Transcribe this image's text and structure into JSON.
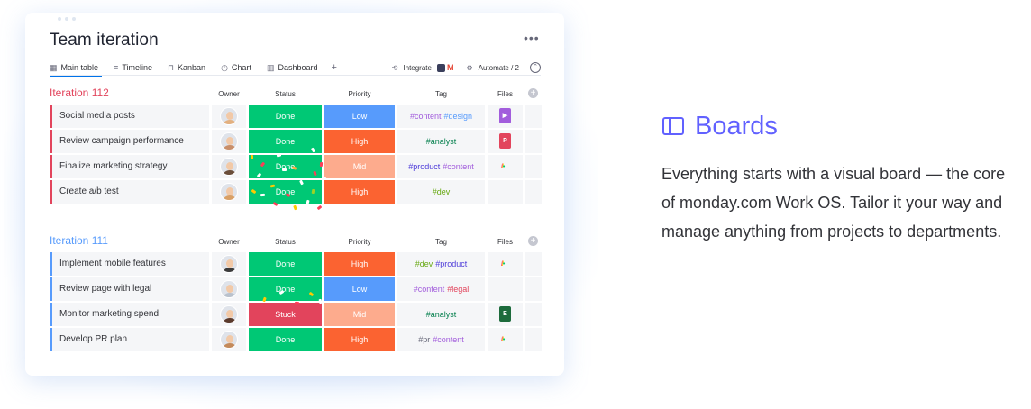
{
  "board": {
    "title": "Team iteration",
    "more_label": "•••",
    "views": [
      {
        "label": "Main table",
        "icon": "table-icon"
      },
      {
        "label": "Timeline",
        "icon": "timeline-icon"
      },
      {
        "label": "Kanban",
        "icon": "kanban-icon"
      },
      {
        "label": "Chart",
        "icon": "chart-icon"
      },
      {
        "label": "Dashboard",
        "icon": "dashboard-icon"
      }
    ],
    "add_view": "+",
    "integrate_label": "Integrate",
    "automate_label": "Automate / 2",
    "columns": {
      "owner": "Owner",
      "status": "Status",
      "priority": "Priority",
      "tag": "Tag",
      "files": "Files"
    },
    "groups": [
      {
        "title": "Iteration 112",
        "color": "#e2445c",
        "rows": [
          {
            "name": "Social media posts",
            "status": "Done",
            "priority": "Low",
            "tags": [
              "#content",
              "#design"
            ],
            "file": "video"
          },
          {
            "name": "Review campaign performance",
            "status": "Done",
            "priority": "High",
            "tags": [
              "#analyst"
            ],
            "file": "ppt"
          },
          {
            "name": "Finalize marketing strategy",
            "status": "Done",
            "priority": "Mid",
            "tags": [
              "#product",
              "#content"
            ],
            "file": "monday"
          },
          {
            "name": "Create a/b test",
            "status": "Done",
            "priority": "High",
            "tags": [
              "#dev"
            ],
            "file": "none"
          }
        ]
      },
      {
        "title": "Iteration 111",
        "color": "#579bfc",
        "rows": [
          {
            "name": "Implement mobile features",
            "status": "Done",
            "priority": "High",
            "tags": [
              "#dev",
              "#product"
            ],
            "file": "monday"
          },
          {
            "name": "Review page with legal",
            "status": "Done",
            "priority": "Low",
            "tags": [
              "#content",
              "#legal"
            ],
            "file": "none"
          },
          {
            "name": "Monitor marketing spend",
            "status": "Stuck",
            "priority": "Mid",
            "tags": [
              "#analyst"
            ],
            "file": "excel"
          },
          {
            "name": "Develop PR plan",
            "status": "Done",
            "priority": "High",
            "tags": [
              "#pr",
              "#content"
            ],
            "file": "monday"
          }
        ]
      }
    ]
  },
  "feature": {
    "title": "Boards",
    "description": "Everything starts with a visual board — the core of monday.com Work OS. Tailor it your way and manage anything from projects to departments."
  },
  "colors": {
    "accent": "#6161ff",
    "done": "#00c875",
    "stuck": "#e2445c",
    "low": "#579bfc",
    "high": "#fb6331",
    "mid": "#fdab8d"
  }
}
